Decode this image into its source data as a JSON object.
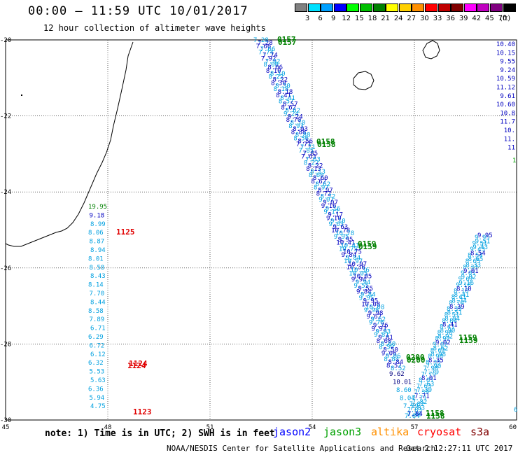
{
  "header": {
    "title": "00:00 — 11:59 UTC 10/01/2017",
    "subtitle": "12 hour collection of altimeter wave heights"
  },
  "legend": {
    "unit": "(ft)",
    "items": [
      {
        "label": "3",
        "color": "#808080"
      },
      {
        "label": "6",
        "color": "#00e0ff"
      },
      {
        "label": "9",
        "color": "#00a0ff"
      },
      {
        "label": "12",
        "color": "#0000ff"
      },
      {
        "label": "15",
        "color": "#00ff00"
      },
      {
        "label": "18",
        "color": "#00c000"
      },
      {
        "label": "21",
        "color": "#008000"
      },
      {
        "label": "24",
        "color": "#ffff00"
      },
      {
        "label": "27",
        "color": "#ffd000"
      },
      {
        "label": "30",
        "color": "#ff9000"
      },
      {
        "label": "33",
        "color": "#ff0000"
      },
      {
        "label": "36",
        "color": "#c00000"
      },
      {
        "label": "39",
        "color": "#800000"
      },
      {
        "label": "42",
        "color": "#ff00ff"
      },
      {
        "label": "45",
        "color": "#c000c0"
      },
      {
        "label": "70",
        "color": "#800080"
      },
      {
        "label": "",
        "color": "#000000"
      }
    ]
  },
  "axes": {
    "lon_labels": [
      "45",
      "48",
      "51",
      "54",
      "57",
      "60"
    ],
    "lat_labels": [
      "-20",
      "-22",
      "-24",
      "-26",
      "-28",
      "-30"
    ]
  },
  "tracks": {
    "left": {
      "labels": [
        {
          "t": "19.95",
          "c": "#008000"
        },
        {
          "t": "9.18",
          "c": "#0000c0"
        },
        {
          "t": "8.99",
          "c": "#00a0e0"
        },
        {
          "t": "8.06",
          "c": "#00a0e0"
        },
        {
          "t": "8.87",
          "c": "#00a0e0"
        },
        {
          "t": "8.94",
          "c": "#00a0e0"
        },
        {
          "t": "8.01",
          "c": "#00a0e0"
        },
        {
          "t": "8.58",
          "c": "#00a0e0"
        },
        {
          "t": "8.43",
          "c": "#00a0e0"
        },
        {
          "t": "8.14",
          "c": "#00a0e0"
        },
        {
          "t": "7.70",
          "c": "#00a0e0"
        },
        {
          "t": "8.44",
          "c": "#00a0e0"
        },
        {
          "t": "8.58",
          "c": "#00a0e0"
        },
        {
          "t": "7.89",
          "c": "#00a0e0"
        },
        {
          "t": "6.71",
          "c": "#00a0e0"
        },
        {
          "t": "6.29",
          "c": "#00a0e0"
        },
        {
          "t": "6.72",
          "c": "#00a0e0"
        },
        {
          "t": "6.12",
          "c": "#00a0e0"
        },
        {
          "t": "6.32",
          "c": "#00a0e0"
        },
        {
          "t": "5.53",
          "c": "#00a0e0"
        },
        {
          "t": "5.63",
          "c": "#00a0e0"
        },
        {
          "t": "6.36",
          "c": "#00a0e0"
        },
        {
          "t": "5.94",
          "c": "#00a0e0"
        },
        {
          "t": "4.75",
          "c": "#00a0e0"
        }
      ]
    },
    "diag": {
      "labels": [
        "7.28",
        "7.66",
        "7.74",
        "7.92",
        "8.06",
        "8.10",
        "8.22",
        "8.30",
        "8.18",
        "8.41",
        "8.57",
        "8.62",
        "9.24",
        "8.70",
        "8.93",
        "8.88",
        "8.56",
        "7.71",
        "7.85",
        "7.63",
        "8.22",
        "8.13",
        "8.60",
        "8.62",
        "8.97",
        "8.72",
        "9.07",
        "9.16",
        "9.17",
        "9.10",
        "9.63",
        "10.78",
        "9.95",
        "10.41",
        "10.75",
        "9.84",
        "10.97",
        "10.36",
        "10.05",
        "9.94",
        "9.55",
        "9.84",
        "9.95",
        "10.08",
        "9.98",
        "9.62",
        "9.76",
        "9.93",
        "9.81",
        "8.60",
        "8.50",
        "9.06",
        "8.84",
        "8.52"
      ]
    },
    "diag_bottom": {
      "labels": [
        "9.62",
        "10.01",
        "8.60",
        "8.04",
        "7.39",
        "7.46"
      ]
    },
    "right_v": {
      "labels": [
        "9.95",
        "9.51",
        "9.43",
        "8.54",
        "8.65",
        "8.33",
        "9.01",
        "9.02",
        "9.16",
        "8.10",
        "8.41",
        "8.74",
        "8.39",
        "8.51",
        "8.84",
        "8.41",
        "8.90",
        "8.92",
        "9.02",
        "8.62",
        "8.98",
        "8.35",
        "7.90",
        "7.79",
        "8.01",
        "7.63",
        "7.39",
        "7.71",
        "7.82",
        "7.83",
        "7.84"
      ]
    },
    "far_right": {
      "labels": [
        "10.40",
        "10.15",
        "9.55",
        "9.24",
        "10.59",
        "11.12",
        "9.61",
        "10.60",
        "10.8",
        "11.7",
        "10.",
        "11.",
        "11"
      ]
    }
  },
  "time_labels": [
    {
      "t": "0157",
      "c": "#008000"
    },
    {
      "t": "0158",
      "c": "#008000"
    },
    {
      "t": "0159",
      "c": "#008000"
    },
    {
      "t": "0200",
      "c": "#008000"
    },
    {
      "t": "1159",
      "c": "#008000"
    },
    {
      "t": "1158",
      "c": "#008000"
    },
    {
      "t": "1125",
      "c": "#e00000"
    },
    {
      "t": "1124",
      "c": "#e00000"
    },
    {
      "t": "1123",
      "c": "#e00000"
    }
  ],
  "footer": {
    "note": "note: 1) Time is in UTC; 2) SWH is in feet",
    "satellites": [
      {
        "name": "jason2",
        "color": "#0000ff"
      },
      {
        "name": "jason3",
        "color": "#00a000"
      },
      {
        "name": "altika",
        "color": "#ff9000"
      },
      {
        "name": "cryosat",
        "color": "#ff0000"
      },
      {
        "name": "s3a",
        "color": "#800000"
      }
    ],
    "credit": "NOAA/NESDIS Center for Satellite Applications and Research",
    "timestamp": "Oct  2 12:27:11 UTC 2017"
  }
}
